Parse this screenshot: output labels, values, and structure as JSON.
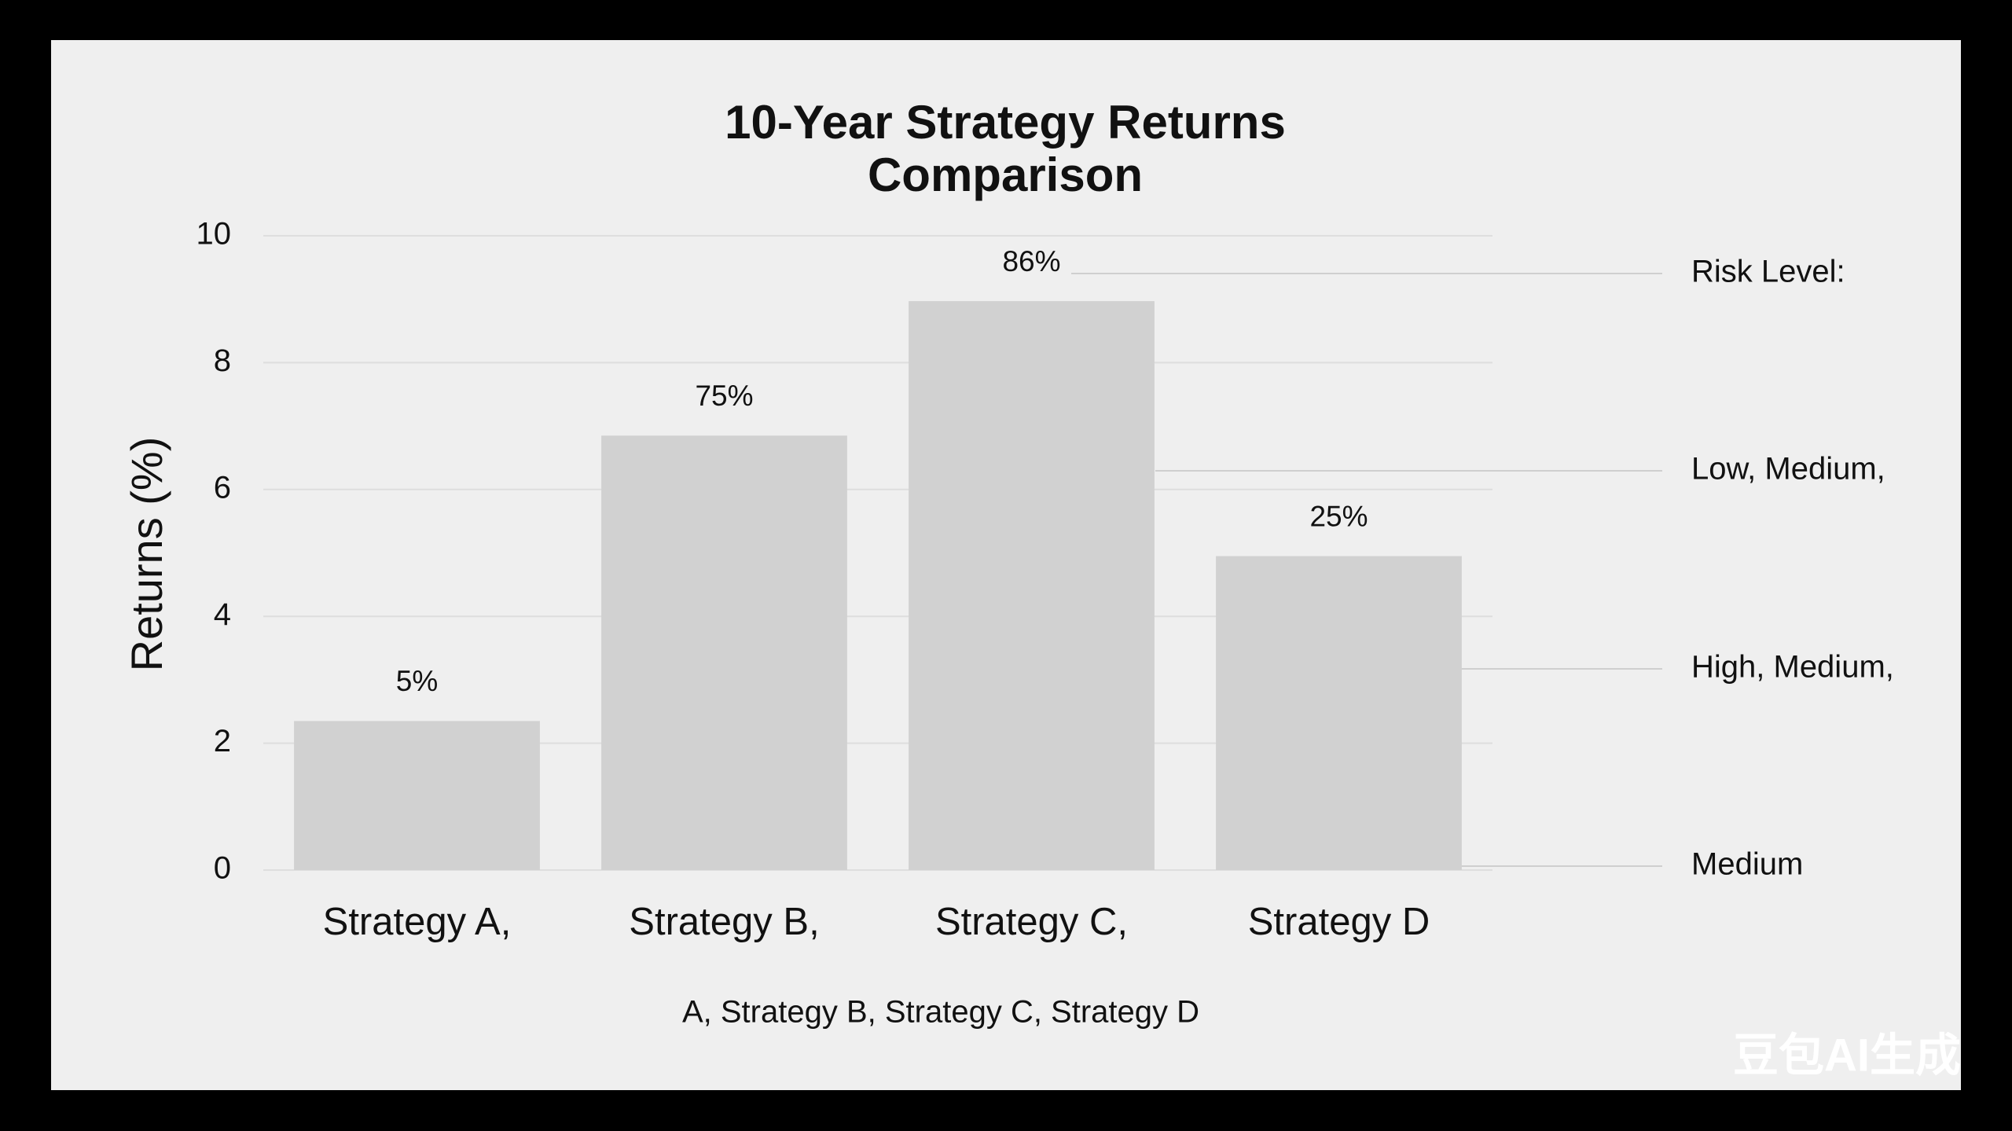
{
  "chart_data": {
    "type": "bar",
    "title": [
      "10-Year Strategy Returns",
      "Comparison"
    ],
    "y_label": "Returns (%)",
    "x_label": "A, Strategy B, Strategy C, Strategy D",
    "categories": [
      "Strategy A,",
      "Strategy B,",
      "Strategy C,",
      "Strategy D"
    ],
    "values": [
      2.35,
      6.85,
      8.97,
      4.95
    ],
    "bar_annotations": [
      "5%",
      "75%",
      "86%",
      "25%"
    ],
    "color": "#d1d1d1",
    "ylim": [
      0,
      10
    ],
    "yticks": [
      0,
      2,
      4,
      6,
      8,
      10
    ],
    "grid": true,
    "side_notes": [
      "Risk Level:",
      "Low, Medium,",
      "High, Medium,",
      "Medium"
    ],
    "watermark": "豆包AI生成"
  }
}
